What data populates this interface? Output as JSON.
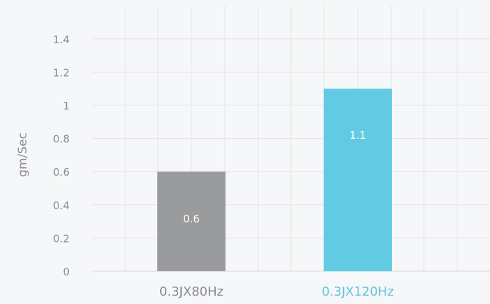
{
  "chart_data": {
    "type": "bar",
    "categories": [
      "0.3JX80Hz",
      "0.3JX120Hz"
    ],
    "values": [
      0.6,
      1.1
    ],
    "data_labels": [
      "0.6",
      "1.1"
    ],
    "bar_colors": [
      "#9a9b9d",
      "#62cbe3"
    ],
    "category_label_colors": [
      "#888a8d",
      "#5ec4dd"
    ],
    "ylabel": "gm/Sec",
    "ylim": [
      0,
      1.6
    ],
    "yticks": [
      0,
      0.2,
      0.4,
      0.6,
      0.8,
      1,
      1.2,
      1.4
    ],
    "ytick_labels": [
      "0",
      "0.2",
      "0.4",
      "0.6",
      "0.8",
      "1",
      "1.2",
      "1.4"
    ],
    "grid": true
  }
}
